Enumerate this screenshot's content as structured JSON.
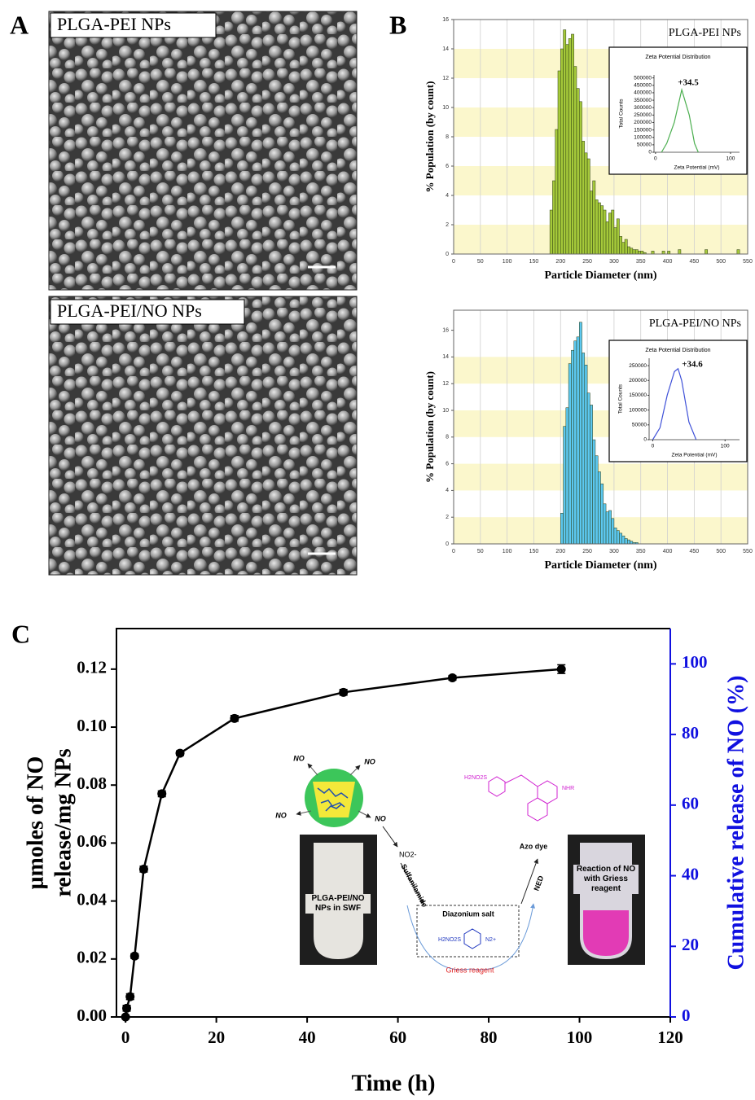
{
  "panel_labels": [
    "A",
    "B",
    "C"
  ],
  "images": [
    {
      "label": "PLGA-PEI NPs"
    },
    {
      "label": "PLGA-PEI/NO NPs"
    }
  ],
  "schematic": {
    "no_labels": [
      "NO",
      "NO",
      "NO",
      "NO"
    ],
    "tube_left": "PLGA-PEI/NO NPs in SWF",
    "nitrite": "NO2-",
    "sulfanilamide": "Sulfanilamide",
    "diazonium": "Diazonium salt",
    "diazonium_left": "H2NO2S",
    "diazonium_right": "N2+",
    "griess": "Griess reagent",
    "ned": "NED",
    "azo": "Azo dye",
    "azo_left": "H2NO2S",
    "azo_right": "NHR",
    "tube_right": "Reaction of NO with Griess reagent"
  },
  "chart_data": [
    {
      "type": "histogram",
      "title": "PLGA-PEI NPs",
      "xlabel": "Particle Diameter (nm)",
      "ylabel": "% Population (by count)",
      "color": "#a5c93a",
      "band_color": "#fbf7cc",
      "grid": true,
      "bins": [
        180,
        185,
        190,
        195,
        200,
        205,
        210,
        215,
        220,
        225,
        230,
        235,
        240,
        245,
        250,
        255,
        260,
        265,
        270,
        275,
        280,
        285,
        290,
        295,
        300,
        305,
        310,
        315,
        320,
        325,
        330,
        335,
        340,
        345,
        350,
        355,
        360,
        365,
        370,
        375,
        380,
        385,
        390,
        395,
        400,
        405,
        410,
        415,
        420,
        425,
        430,
        435,
        440,
        445,
        450,
        455,
        460,
        465,
        470,
        475,
        480,
        485,
        490,
        495,
        500,
        505,
        510,
        515,
        520,
        525,
        530,
        535,
        540
      ],
      "values": [
        3.0,
        5.0,
        8.5,
        12.5,
        14.0,
        15.3,
        14.3,
        14.7,
        15.0,
        12.8,
        11.3,
        10.4,
        7.7,
        6.9,
        6.5,
        4.3,
        5.0,
        3.7,
        3.5,
        3.3,
        3.0,
        2.2,
        2.8,
        3.0,
        1.8,
        2.4,
        1.2,
        0.8,
        1.0,
        0.5,
        0.4,
        0.3,
        0.3,
        0.2,
        0.2,
        0.1,
        0,
        0,
        0.2,
        0,
        0,
        0,
        0.2,
        0,
        0.2,
        0,
        0,
        0,
        0.3,
        0,
        0,
        0,
        0,
        0,
        0,
        0,
        0,
        0,
        0.3,
        0,
        0,
        0,
        0,
        0,
        0,
        0,
        0,
        0,
        0,
        0,
        0.3,
        0
      ],
      "xlim": [
        0,
        550
      ],
      "xticks": [
        0,
        50,
        100,
        150,
        200,
        250,
        300,
        350,
        400,
        450,
        500,
        550
      ],
      "ylim": [
        0,
        16
      ],
      "yticks": [
        0,
        2,
        4,
        6,
        8,
        10,
        12,
        14,
        16
      ]
    },
    {
      "type": "line",
      "title": "Zeta Potential Distribution",
      "xlabel": "Zeta Potential (mV)",
      "ylabel": "Total Counts",
      "annotation": "+34.5",
      "color": "#4caf50",
      "x": [
        8,
        15,
        25,
        35,
        45,
        52,
        57
      ],
      "values": [
        0,
        60000,
        200000,
        420000,
        250000,
        60000,
        0
      ],
      "xlim": [
        -2,
        112
      ],
      "xticks": [
        0,
        100
      ],
      "ylim": [
        0,
        520000
      ],
      "yticks": [
        0,
        50000,
        100000,
        150000,
        200000,
        250000,
        300000,
        350000,
        400000,
        450000,
        500000
      ]
    },
    {
      "type": "histogram",
      "title": "PLGA-PEI/NO NPs",
      "xlabel": "Particle Diameter (nm)",
      "ylabel": "% Population (by count)",
      "color": "#5cc8f0",
      "band_color": "#fbf7cc",
      "grid": true,
      "bins": [
        200,
        205,
        210,
        215,
        220,
        225,
        230,
        235,
        240,
        245,
        250,
        255,
        260,
        265,
        270,
        275,
        280,
        285,
        290,
        295,
        300,
        305,
        310,
        315,
        320,
        325,
        330,
        335,
        340,
        345
      ],
      "values": [
        2.3,
        8.8,
        10.2,
        13.5,
        14.5,
        15.2,
        15.5,
        16.6,
        14.3,
        13.4,
        11.3,
        10.4,
        7.8,
        6.6,
        5.4,
        4.5,
        3.0,
        2.4,
        2.5,
        1.9,
        1.2,
        1.0,
        0.8,
        0.6,
        0.4,
        0.3,
        0.2,
        0.1,
        0.1
      ],
      "xlim": [
        0,
        550
      ],
      "xticks": [
        0,
        50,
        100,
        150,
        200,
        250,
        300,
        350,
        400,
        450,
        500,
        550
      ],
      "ylim": [
        0,
        17.5
      ],
      "yticks": [
        0,
        2,
        4,
        6,
        8,
        10,
        12,
        14,
        16
      ]
    },
    {
      "type": "line",
      "title": "Zeta Potential Distribution",
      "xlabel": "Zeta Potential (mV)",
      "ylabel": "Total Counts",
      "annotation": "+34.6",
      "color": "#3f51d8",
      "x": [
        0,
        10,
        20,
        30,
        35,
        40,
        50,
        60
      ],
      "values": [
        0,
        40000,
        150000,
        230000,
        240000,
        200000,
        60000,
        0
      ],
      "xlim": [
        -5,
        120
      ],
      "xticks": [
        0,
        100
      ],
      "ylim": [
        0,
        275000
      ],
      "yticks": [
        0,
        50000,
        100000,
        150000,
        200000,
        250000
      ]
    },
    {
      "type": "errorline",
      "xlabel": "Time (h)",
      "ylabel": [
        "μmoles of NO",
        "release/mg NPs"
      ],
      "y2label": "Cumulative release of NO (%)",
      "color": "#000000",
      "y2color": "#1010e0",
      "x": [
        0,
        0.25,
        1,
        2,
        4,
        8,
        12,
        24,
        48,
        72,
        96
      ],
      "values": [
        0.0,
        0.003,
        0.007,
        0.021,
        0.051,
        0.077,
        0.091,
        0.103,
        0.112,
        0.117,
        0.12
      ],
      "errors": [
        0.0005,
        0.001,
        0.001,
        0.0008,
        0.001,
        0.001,
        0.0008,
        0.001,
        0.001,
        0.0008,
        0.0015
      ],
      "xlim": [
        -2,
        120
      ],
      "xticks": [
        0,
        20,
        40,
        60,
        80,
        100,
        120
      ],
      "ylim": [
        0,
        0.134
      ],
      "yticks": [
        {
          "value": 0,
          "label": "0.00"
        },
        {
          "value": 0.02,
          "label": "0.02"
        },
        {
          "value": 0.04,
          "label": "0.04"
        },
        {
          "value": 0.06,
          "label": "0.06"
        },
        {
          "value": 0.08,
          "label": "0.08"
        },
        {
          "value": 0.1,
          "label": "0.10"
        },
        {
          "value": 0.12,
          "label": "0.12"
        }
      ],
      "y2lim": [
        0,
        110
      ],
      "y2ticks": [
        0,
        20,
        40,
        60,
        80,
        100
      ]
    }
  ]
}
